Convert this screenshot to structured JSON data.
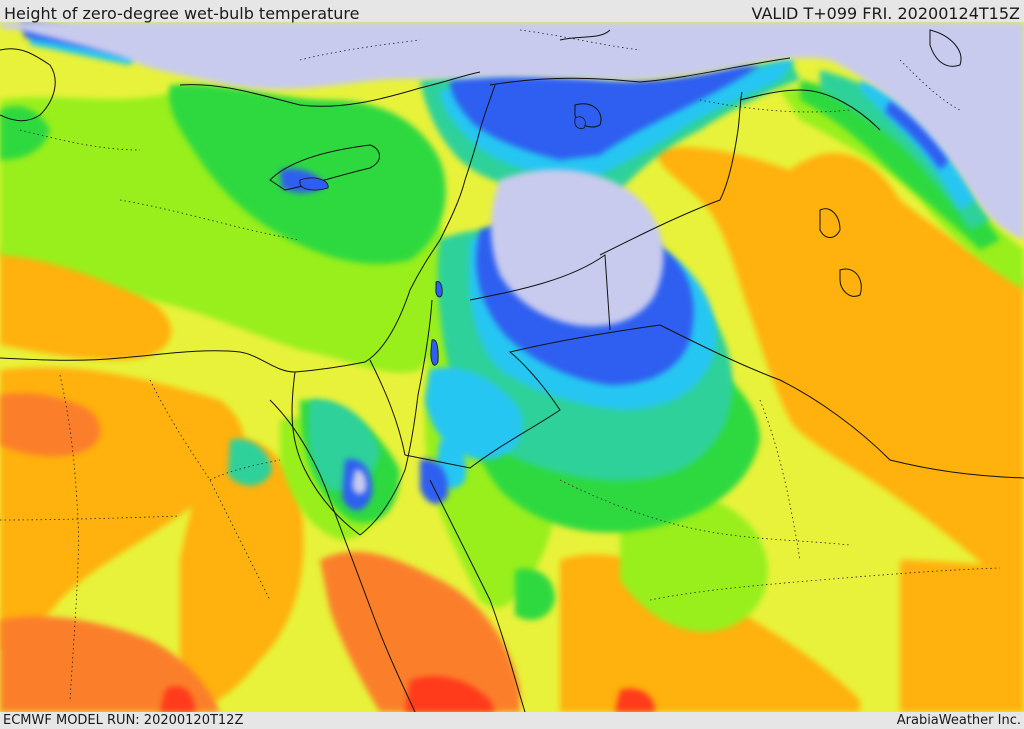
{
  "header": {
    "title": "Height of zero-degree wet-bulb temperature",
    "valid_time": "VALID T+099 FRI. 20200124T15Z"
  },
  "footer": {
    "model_run": "ECMWF MODEL RUN: 20200120T12Z",
    "credit": "ArabiaWeather Inc."
  },
  "map": {
    "field": "zero-degree wet-bulb height",
    "palette": {
      "lowest": "#c8cbee",
      "very_low": "#2e5ef0",
      "low": "#26c6f2",
      "teal": "#2ed19a",
      "green": "#2fd93f",
      "light_green": "#98ef1e",
      "yellow": "#e8f23a",
      "orange": "#ffb10e",
      "dark_orange": "#fb7f2c",
      "red": "#ff3b1a"
    },
    "borders_color": "#111111"
  }
}
